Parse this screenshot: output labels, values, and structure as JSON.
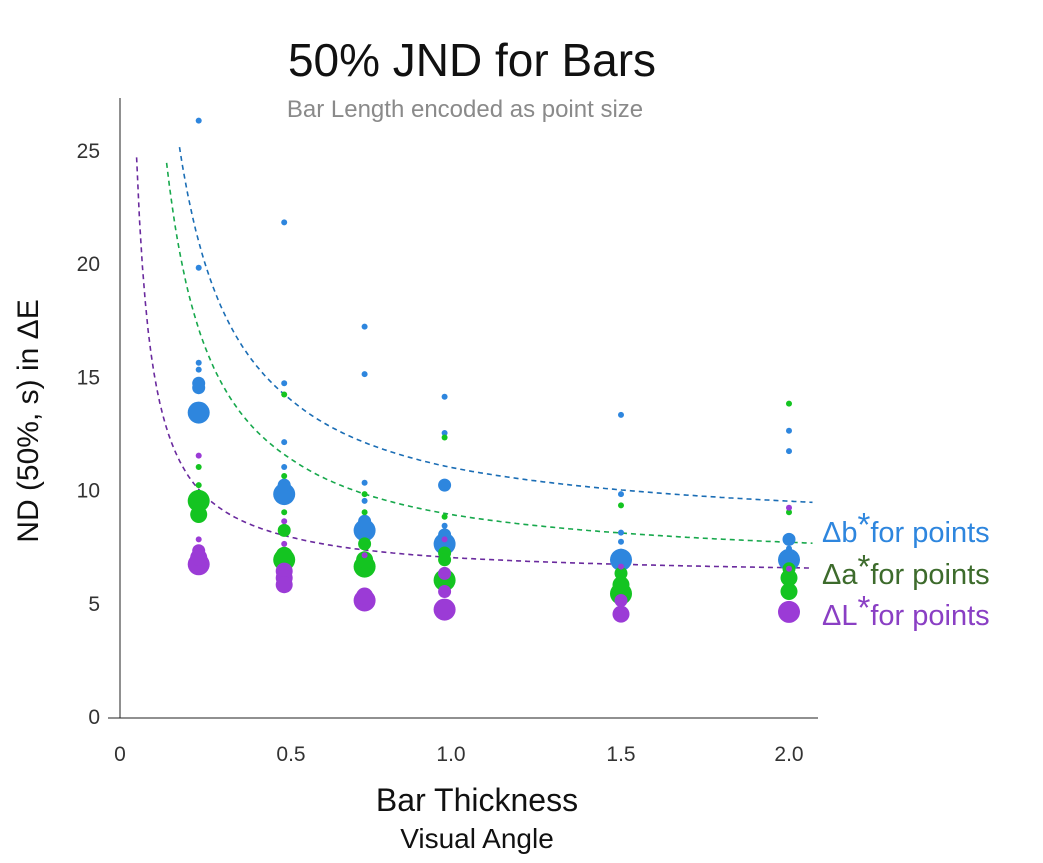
{
  "chart_data": {
    "type": "scatter",
    "title": "50% JND for Bars",
    "subtitle": "Bar Length encoded as point size",
    "xlabel": "Bar Thickness",
    "xlabel_sub": "Visual Angle",
    "ylabel": "ND (50%, s) in ΔE",
    "xlim": [
      0,
      2.07
    ],
    "ylim": [
      0,
      27.5
    ],
    "x_ticks": [
      {
        "value": 0,
        "label": "0"
      },
      {
        "value": 0.5,
        "label": "0.5"
      },
      {
        "value": 1.0,
        "label": "1.0"
      },
      {
        "value": 1.5,
        "label": "1.5"
      },
      {
        "value": 2.0,
        "label": "2.0"
      }
    ],
    "y_ticks": [
      {
        "value": 0,
        "label": "0"
      },
      {
        "value": 5,
        "label": "5"
      },
      {
        "value": 10,
        "label": "10"
      },
      {
        "value": 15,
        "label": "15"
      },
      {
        "value": 20,
        "label": "20"
      },
      {
        "value": 25,
        "label": "25"
      }
    ],
    "grid": false,
    "point_size_encodes": "Bar Length",
    "series": [
      {
        "name": "Δb*for points",
        "legend_main": "Δb",
        "legend_star": "*",
        "legend_rest": "for points",
        "color": "#2e86de",
        "label_color": "#2e86de",
        "curve_color": "#1a6db5",
        "points": [
          {
            "x": 0.23,
            "y": 26.3,
            "size": 1
          },
          {
            "x": 0.23,
            "y": 19.8,
            "size": 1
          },
          {
            "x": 0.23,
            "y": 15.6,
            "size": 1
          },
          {
            "x": 0.23,
            "y": 15.3,
            "size": 1
          },
          {
            "x": 0.23,
            "y": 14.7,
            "size": 2
          },
          {
            "x": 0.23,
            "y": 14.5,
            "size": 2
          },
          {
            "x": 0.23,
            "y": 13.4,
            "size": 4
          },
          {
            "x": 0.48,
            "y": 21.8,
            "size": 1
          },
          {
            "x": 0.48,
            "y": 14.7,
            "size": 1
          },
          {
            "x": 0.48,
            "y": 12.1,
            "size": 1
          },
          {
            "x": 0.48,
            "y": 11.0,
            "size": 1
          },
          {
            "x": 0.48,
            "y": 10.2,
            "size": 2
          },
          {
            "x": 0.48,
            "y": 9.8,
            "size": 4
          },
          {
            "x": 0.73,
            "y": 17.2,
            "size": 1
          },
          {
            "x": 0.73,
            "y": 15.1,
            "size": 1
          },
          {
            "x": 0.73,
            "y": 10.3,
            "size": 1
          },
          {
            "x": 0.73,
            "y": 9.5,
            "size": 1
          },
          {
            "x": 0.73,
            "y": 8.6,
            "size": 2
          },
          {
            "x": 0.73,
            "y": 8.2,
            "size": 4
          },
          {
            "x": 0.98,
            "y": 14.1,
            "size": 1
          },
          {
            "x": 0.98,
            "y": 12.5,
            "size": 1
          },
          {
            "x": 0.98,
            "y": 10.2,
            "size": 2
          },
          {
            "x": 0.98,
            "y": 8.4,
            "size": 1
          },
          {
            "x": 0.98,
            "y": 8.0,
            "size": 2
          },
          {
            "x": 0.98,
            "y": 7.6,
            "size": 4
          },
          {
            "x": 1.5,
            "y": 13.3,
            "size": 1
          },
          {
            "x": 1.5,
            "y": 9.8,
            "size": 1
          },
          {
            "x": 1.5,
            "y": 8.1,
            "size": 1
          },
          {
            "x": 1.5,
            "y": 7.7,
            "size": 1
          },
          {
            "x": 1.5,
            "y": 7.1,
            "size": 2
          },
          {
            "x": 1.5,
            "y": 6.9,
            "size": 4
          },
          {
            "x": 2.0,
            "y": 12.6,
            "size": 1
          },
          {
            "x": 2.0,
            "y": 11.7,
            "size": 1
          },
          {
            "x": 2.0,
            "y": 7.8,
            "size": 2
          },
          {
            "x": 2.0,
            "y": 7.4,
            "size": 1
          },
          {
            "x": 2.0,
            "y": 6.9,
            "size": 4
          }
        ],
        "curve": {
          "a": 8.0,
          "b": 2.98,
          "x_from": 0.15,
          "x_to": 2.07
        }
      },
      {
        "name": "Δa*for points",
        "legend_main": "Δa",
        "legend_star": "*",
        "legend_rest": "for points",
        "color": "#14c421",
        "label_color": "#3d6b2c",
        "curve_color": "#17a84c",
        "points": [
          {
            "x": 0.23,
            "y": 11.0,
            "size": 1
          },
          {
            "x": 0.23,
            "y": 10.2,
            "size": 1
          },
          {
            "x": 0.23,
            "y": 9.7,
            "size": 2
          },
          {
            "x": 0.23,
            "y": 9.5,
            "size": 4
          },
          {
            "x": 0.23,
            "y": 8.9,
            "size": 3
          },
          {
            "x": 0.48,
            "y": 14.2,
            "size": 1
          },
          {
            "x": 0.48,
            "y": 10.6,
            "size": 1
          },
          {
            "x": 0.48,
            "y": 9.0,
            "size": 1
          },
          {
            "x": 0.48,
            "y": 8.2,
            "size": 2
          },
          {
            "x": 0.48,
            "y": 7.1,
            "size": 3
          },
          {
            "x": 0.48,
            "y": 6.9,
            "size": 4
          },
          {
            "x": 0.73,
            "y": 9.8,
            "size": 1
          },
          {
            "x": 0.73,
            "y": 9.0,
            "size": 1
          },
          {
            "x": 0.73,
            "y": 7.6,
            "size": 2
          },
          {
            "x": 0.73,
            "y": 6.9,
            "size": 3
          },
          {
            "x": 0.73,
            "y": 6.6,
            "size": 4
          },
          {
            "x": 0.98,
            "y": 12.3,
            "size": 1
          },
          {
            "x": 0.98,
            "y": 8.8,
            "size": 1
          },
          {
            "x": 0.98,
            "y": 7.2,
            "size": 2
          },
          {
            "x": 0.98,
            "y": 6.9,
            "size": 2
          },
          {
            "x": 0.98,
            "y": 6.0,
            "size": 4
          },
          {
            "x": 1.5,
            "y": 9.3,
            "size": 1
          },
          {
            "x": 1.5,
            "y": 6.3,
            "size": 2
          },
          {
            "x": 1.5,
            "y": 5.8,
            "size": 3
          },
          {
            "x": 1.5,
            "y": 5.4,
            "size": 4
          },
          {
            "x": 2.0,
            "y": 13.8,
            "size": 1
          },
          {
            "x": 2.0,
            "y": 9.0,
            "size": 1
          },
          {
            "x": 2.0,
            "y": 6.5,
            "size": 2
          },
          {
            "x": 2.0,
            "y": 6.1,
            "size": 3
          },
          {
            "x": 2.0,
            "y": 5.5,
            "size": 3
          }
        ],
        "curve": {
          "a": 6.45,
          "b": 2.45,
          "x_from": 0.12,
          "x_to": 2.07
        }
      },
      {
        "name": "ΔL*for points",
        "legend_main": "ΔL",
        "legend_star": "*",
        "legend_rest": "for points",
        "color": "#9b3bd6",
        "label_color": "#8a3fc4",
        "curve_color": "#6a2a9e",
        "points": [
          {
            "x": 0.23,
            "y": 11.5,
            "size": 1
          },
          {
            "x": 0.23,
            "y": 7.8,
            "size": 1
          },
          {
            "x": 0.23,
            "y": 7.3,
            "size": 2
          },
          {
            "x": 0.23,
            "y": 7.0,
            "size": 3
          },
          {
            "x": 0.23,
            "y": 6.7,
            "size": 4
          },
          {
            "x": 0.48,
            "y": 8.6,
            "size": 1
          },
          {
            "x": 0.48,
            "y": 7.6,
            "size": 1
          },
          {
            "x": 0.48,
            "y": 6.4,
            "size": 3
          },
          {
            "x": 0.48,
            "y": 6.1,
            "size": 3
          },
          {
            "x": 0.48,
            "y": 5.8,
            "size": 3
          },
          {
            "x": 0.73,
            "y": 7.1,
            "size": 1
          },
          {
            "x": 0.73,
            "y": 5.3,
            "size": 3
          },
          {
            "x": 0.73,
            "y": 5.1,
            "size": 4
          },
          {
            "x": 0.98,
            "y": 7.8,
            "size": 1
          },
          {
            "x": 0.98,
            "y": 6.3,
            "size": 2
          },
          {
            "x": 0.98,
            "y": 5.5,
            "size": 2
          },
          {
            "x": 0.98,
            "y": 4.7,
            "size": 4
          },
          {
            "x": 1.5,
            "y": 6.6,
            "size": 1
          },
          {
            "x": 1.5,
            "y": 5.1,
            "size": 2
          },
          {
            "x": 1.5,
            "y": 4.5,
            "size": 3
          },
          {
            "x": 2.0,
            "y": 9.2,
            "size": 1
          },
          {
            "x": 2.0,
            "y": 6.5,
            "size": 1
          },
          {
            "x": 2.0,
            "y": 4.6,
            "size": 4
          }
        ],
        "curve": {
          "a": 6.1,
          "b": 0.9,
          "x_from": 0.04,
          "x_to": 2.07
        }
      }
    ]
  }
}
